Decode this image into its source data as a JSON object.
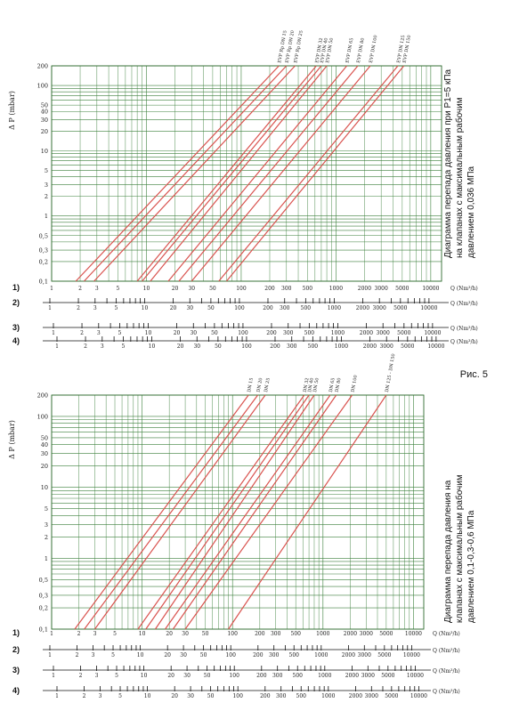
{
  "figure_caption": "Рис. 5",
  "chart_data": [
    {
      "type": "line",
      "ylabel": "Δ P (mbar)",
      "xlabel": "Q (Nm³/h)",
      "side_title": [
        "Диаграмма перепада давления при P1=5 кПа",
        "на клапанах с максимальным рабочим",
        "давлением 0,036 МПа"
      ],
      "y_scale": "log",
      "ylim": [
        0.1,
        200
      ],
      "xlim": [
        1,
        13000
      ],
      "y_ticks": [
        "200",
        "100",
        "50",
        "40",
        "30",
        "20",
        "10",
        "5",
        "3",
        "2",
        "1",
        "0,5",
        "0,3",
        "0,2",
        "0,1"
      ],
      "scales": [
        {
          "label": "1)",
          "ticks": [
            "1",
            "2",
            "3",
            "5",
            "10",
            "20",
            "30",
            "50",
            "100",
            "200",
            "300",
            "500",
            "1000",
            "2000",
            "3000",
            "5000",
            "10000"
          ],
          "unit": "Q (Nm³/h)"
        },
        {
          "label": "2)",
          "ticks": [
            "1",
            "2",
            "3",
            "5",
            "10",
            "20",
            "30",
            "50",
            "100",
            "200",
            "300",
            "500",
            "1000",
            "2000",
            "3000",
            "5000",
            "10000"
          ],
          "unit": "Q (Nm³/h)"
        },
        {
          "label": "3)",
          "ticks": [
            "1",
            "2",
            "3",
            "5",
            "10",
            "20",
            "30",
            "50",
            "100",
            "200",
            "300",
            "500",
            "1000",
            "2000",
            "3000",
            "5000",
            "10000"
          ],
          "unit": "Q (Nm³/h)"
        },
        {
          "label": "4)",
          "ticks": [
            "1",
            "2",
            "3",
            "5",
            "10",
            "20",
            "30",
            "50",
            "100",
            "200",
            "300",
            "500",
            "1000",
            "2000",
            "3000",
            "5000",
            "10000"
          ],
          "unit": "Q (Nm³/h)"
        }
      ],
      "series": [
        {
          "name": "EVP Rp DN 15",
          "x_at_200": 250,
          "x_at_01": 1.8
        },
        {
          "name": "EVP Rp DN 20",
          "x_at_200": 300,
          "x_at_01": 2.2
        },
        {
          "name": "EVP Rp DN 25",
          "x_at_200": 370,
          "x_at_01": 2.8
        },
        {
          "name": "EVP DN 32",
          "x_at_200": 620,
          "x_at_01": 8
        },
        {
          "name": "EVP DN 40",
          "x_at_200": 700,
          "x_at_01": 9
        },
        {
          "name": "EVP DN 50",
          "x_at_200": 800,
          "x_at_01": 11
        },
        {
          "name": "EVP DN 65",
          "x_at_200": 1300,
          "x_at_01": 17
        },
        {
          "name": "EVP DN 80",
          "x_at_200": 1700,
          "x_at_01": 22
        },
        {
          "name": "EVP DN 100",
          "x_at_200": 2300,
          "x_at_01": 30
        },
        {
          "name": "EVP DN 125",
          "x_at_200": 4500,
          "x_at_01": 58
        },
        {
          "name": "EVP DN 150",
          "x_at_200": 5200,
          "x_at_01": 70
        }
      ]
    },
    {
      "type": "line",
      "ylabel": "Δ P (mbar)",
      "xlabel": "Q (Nm³/h)",
      "side_title": [
        "Диаграмма перепада давления на",
        "клапанах с максимальным рабочим",
        "давлением 0,1-0,3-0,6 МПа"
      ],
      "y_scale": "log",
      "ylim": [
        0.1,
        200
      ],
      "xlim": [
        1,
        13000
      ],
      "y_ticks": [
        "200",
        "100",
        "50",
        "40",
        "30",
        "20",
        "10",
        "5",
        "3",
        "2",
        "1",
        "0,5",
        "0,3",
        "0,2",
        "0,1"
      ],
      "scales": [
        {
          "label": "1)",
          "ticks": [
            "1",
            "2",
            "3",
            "5",
            "10",
            "20",
            "30",
            "50",
            "100",
            "200",
            "300",
            "500",
            "1000",
            "2000",
            "3000",
            "5000",
            "10000"
          ],
          "unit": "Q (Nm³/h)"
        },
        {
          "label": "2)",
          "ticks": [
            "1",
            "2",
            "3",
            "5",
            "10",
            "20",
            "30",
            "50",
            "100",
            "200",
            "300",
            "500",
            "1000",
            "2000",
            "3000",
            "5000",
            "10000"
          ],
          "unit": "Q (Nm³/h)"
        },
        {
          "label": "3)",
          "ticks": [
            "1",
            "2",
            "3",
            "5",
            "10",
            "20",
            "30",
            "50",
            "100",
            "200",
            "300",
            "500",
            "1000",
            "2000",
            "3000",
            "5000",
            "10000"
          ],
          "unit": "Q (Nm³/h)"
        },
        {
          "label": "4)",
          "ticks": [
            "1",
            "2",
            "3",
            "5",
            "10",
            "20",
            "30",
            "50",
            "100",
            "200",
            "300",
            "500",
            "1000",
            "2000",
            "3000",
            "5000",
            "10000"
          ],
          "unit": "Q (Nm³/h)"
        }
      ],
      "series": [
        {
          "name": "DN 15",
          "x_at_200": 150,
          "x_at_01": 1.8
        },
        {
          "name": "DN 20",
          "x_at_200": 190,
          "x_at_01": 2.3
        },
        {
          "name": "DN 25",
          "x_at_200": 230,
          "x_at_01": 3
        },
        {
          "name": "DN 32",
          "x_at_200": 620,
          "x_at_01": 9
        },
        {
          "name": "DN 40",
          "x_at_200": 700,
          "x_at_01": 11
        },
        {
          "name": "DN 50",
          "x_at_200": 800,
          "x_at_01": 14
        },
        {
          "name": "DN 65",
          "x_at_200": 1200,
          "x_at_01": 18
        },
        {
          "name": "DN 80",
          "x_at_200": 1400,
          "x_at_01": 22
        },
        {
          "name": "DN 100",
          "x_at_200": 2100,
          "x_at_01": 30
        },
        {
          "name": "DN 125 - DN 150",
          "x_at_200": 5000,
          "x_at_01": 90
        }
      ]
    }
  ]
}
